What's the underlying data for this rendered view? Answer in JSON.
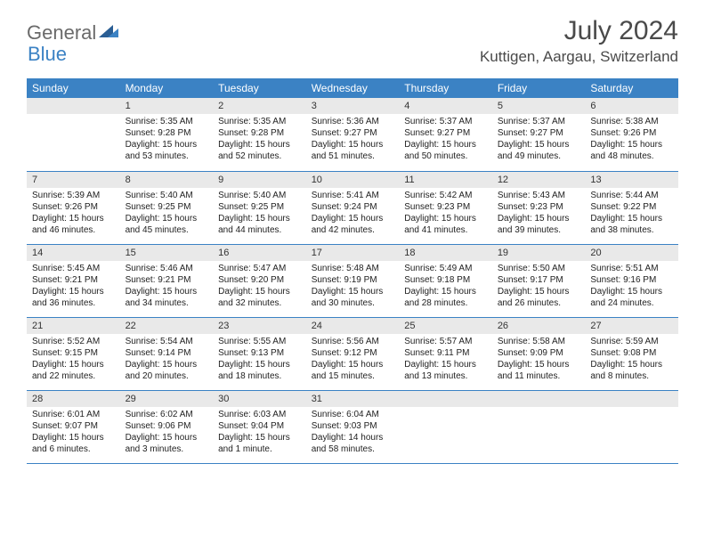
{
  "logo": {
    "text1": "General",
    "text2": "Blue"
  },
  "title": "July 2024",
  "location": "Kuttigen, Aargau, Switzerland",
  "header_bg": "#3b82c4",
  "weekdays": [
    "Sunday",
    "Monday",
    "Tuesday",
    "Wednesday",
    "Thursday",
    "Friday",
    "Saturday"
  ],
  "weeks": [
    [
      null,
      {
        "n": "1",
        "sr": "5:35 AM",
        "ss": "9:28 PM",
        "dl": "15 hours and 53 minutes."
      },
      {
        "n": "2",
        "sr": "5:35 AM",
        "ss": "9:28 PM",
        "dl": "15 hours and 52 minutes."
      },
      {
        "n": "3",
        "sr": "5:36 AM",
        "ss": "9:27 PM",
        "dl": "15 hours and 51 minutes."
      },
      {
        "n": "4",
        "sr": "5:37 AM",
        "ss": "9:27 PM",
        "dl": "15 hours and 50 minutes."
      },
      {
        "n": "5",
        "sr": "5:37 AM",
        "ss": "9:27 PM",
        "dl": "15 hours and 49 minutes."
      },
      {
        "n": "6",
        "sr": "5:38 AM",
        "ss": "9:26 PM",
        "dl": "15 hours and 48 minutes."
      }
    ],
    [
      {
        "n": "7",
        "sr": "5:39 AM",
        "ss": "9:26 PM",
        "dl": "15 hours and 46 minutes."
      },
      {
        "n": "8",
        "sr": "5:40 AM",
        "ss": "9:25 PM",
        "dl": "15 hours and 45 minutes."
      },
      {
        "n": "9",
        "sr": "5:40 AM",
        "ss": "9:25 PM",
        "dl": "15 hours and 44 minutes."
      },
      {
        "n": "10",
        "sr": "5:41 AM",
        "ss": "9:24 PM",
        "dl": "15 hours and 42 minutes."
      },
      {
        "n": "11",
        "sr": "5:42 AM",
        "ss": "9:23 PM",
        "dl": "15 hours and 41 minutes."
      },
      {
        "n": "12",
        "sr": "5:43 AM",
        "ss": "9:23 PM",
        "dl": "15 hours and 39 minutes."
      },
      {
        "n": "13",
        "sr": "5:44 AM",
        "ss": "9:22 PM",
        "dl": "15 hours and 38 minutes."
      }
    ],
    [
      {
        "n": "14",
        "sr": "5:45 AM",
        "ss": "9:21 PM",
        "dl": "15 hours and 36 minutes."
      },
      {
        "n": "15",
        "sr": "5:46 AM",
        "ss": "9:21 PM",
        "dl": "15 hours and 34 minutes."
      },
      {
        "n": "16",
        "sr": "5:47 AM",
        "ss": "9:20 PM",
        "dl": "15 hours and 32 minutes."
      },
      {
        "n": "17",
        "sr": "5:48 AM",
        "ss": "9:19 PM",
        "dl": "15 hours and 30 minutes."
      },
      {
        "n": "18",
        "sr": "5:49 AM",
        "ss": "9:18 PM",
        "dl": "15 hours and 28 minutes."
      },
      {
        "n": "19",
        "sr": "5:50 AM",
        "ss": "9:17 PM",
        "dl": "15 hours and 26 minutes."
      },
      {
        "n": "20",
        "sr": "5:51 AM",
        "ss": "9:16 PM",
        "dl": "15 hours and 24 minutes."
      }
    ],
    [
      {
        "n": "21",
        "sr": "5:52 AM",
        "ss": "9:15 PM",
        "dl": "15 hours and 22 minutes."
      },
      {
        "n": "22",
        "sr": "5:54 AM",
        "ss": "9:14 PM",
        "dl": "15 hours and 20 minutes."
      },
      {
        "n": "23",
        "sr": "5:55 AM",
        "ss": "9:13 PM",
        "dl": "15 hours and 18 minutes."
      },
      {
        "n": "24",
        "sr": "5:56 AM",
        "ss": "9:12 PM",
        "dl": "15 hours and 15 minutes."
      },
      {
        "n": "25",
        "sr": "5:57 AM",
        "ss": "9:11 PM",
        "dl": "15 hours and 13 minutes."
      },
      {
        "n": "26",
        "sr": "5:58 AM",
        "ss": "9:09 PM",
        "dl": "15 hours and 11 minutes."
      },
      {
        "n": "27",
        "sr": "5:59 AM",
        "ss": "9:08 PM",
        "dl": "15 hours and 8 minutes."
      }
    ],
    [
      {
        "n": "28",
        "sr": "6:01 AM",
        "ss": "9:07 PM",
        "dl": "15 hours and 6 minutes."
      },
      {
        "n": "29",
        "sr": "6:02 AM",
        "ss": "9:06 PM",
        "dl": "15 hours and 3 minutes."
      },
      {
        "n": "30",
        "sr": "6:03 AM",
        "ss": "9:04 PM",
        "dl": "15 hours and 1 minute."
      },
      {
        "n": "31",
        "sr": "6:04 AM",
        "ss": "9:03 PM",
        "dl": "14 hours and 58 minutes."
      },
      null,
      null,
      null
    ]
  ]
}
